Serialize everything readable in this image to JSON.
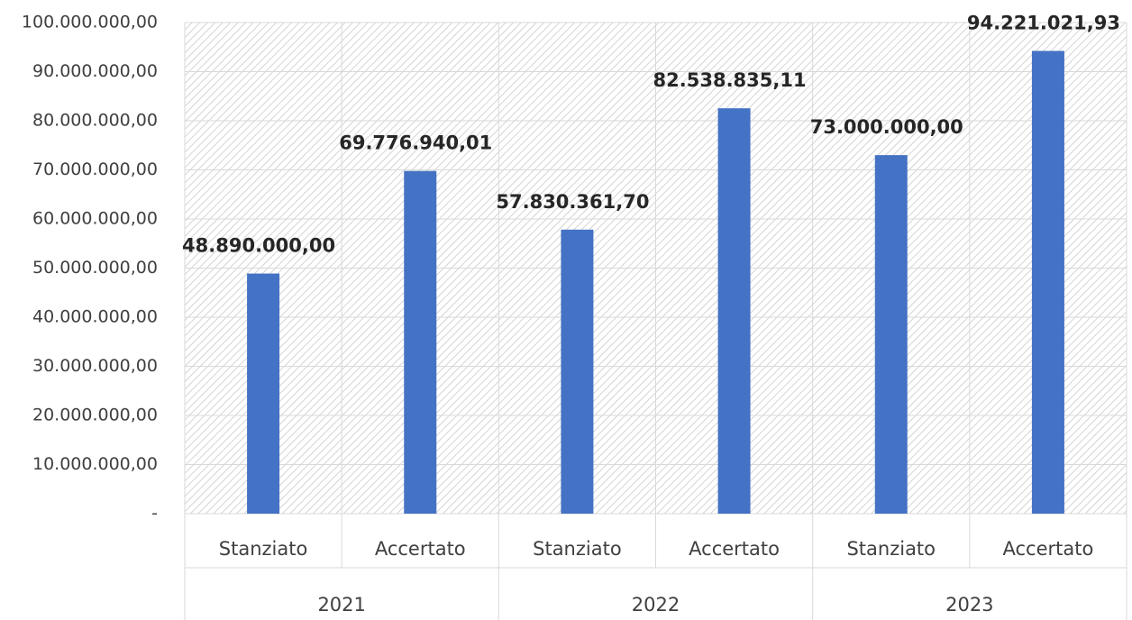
{
  "chart_data": {
    "type": "bar",
    "categories": [
      "Stanziato",
      "Accertato",
      "Stanziato",
      "Accertato",
      "Stanziato",
      "Accertato"
    ],
    "groups": [
      "2021",
      "2022",
      "2023"
    ],
    "values": [
      48890000,
      69776940.01,
      57830361.7,
      82538835.11,
      73000000,
      94221021.93
    ],
    "value_labels": [
      "48.890.000,00",
      "69.776.940,01",
      "57.830.361,70",
      "82.538.835,11",
      "73.000.000,00",
      "94.221.021,93"
    ],
    "color": "#4472c4",
    "ylim": [
      0,
      100000000
    ],
    "yticks": [
      {
        "value": 0,
        "label": "-"
      },
      {
        "value": 10000000,
        "label": "10.000.000,00"
      },
      {
        "value": 20000000,
        "label": "20.000.000,00"
      },
      {
        "value": 30000000,
        "label": "30.000.000,00"
      },
      {
        "value": 40000000,
        "label": "40.000.000,00"
      },
      {
        "value": 50000000,
        "label": "50.000.000,00"
      },
      {
        "value": 60000000,
        "label": "60.000.000,00"
      },
      {
        "value": 70000000,
        "label": "70.000.000,00"
      },
      {
        "value": 80000000,
        "label": "80.000.000,00"
      },
      {
        "value": 90000000,
        "label": "90.000.000,00"
      },
      {
        "value": 100000000,
        "label": "100.000.000,00"
      }
    ],
    "grid": true
  }
}
